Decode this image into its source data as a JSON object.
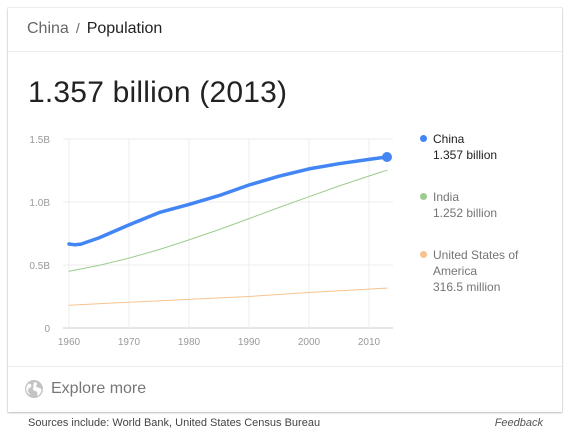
{
  "breadcrumb": {
    "entity": "China",
    "separator": "/",
    "topic": "Population"
  },
  "headline": "1.357 billion (2013)",
  "chart_data": {
    "type": "line",
    "y_ticks": [
      {
        "label": "1.5B",
        "value": 1.5
      },
      {
        "label": "1.0B",
        "value": 1.0
      },
      {
        "label": "0.5B",
        "value": 0.5
      },
      {
        "label": "0",
        "value": 0
      }
    ],
    "x_ticks": [
      "1960",
      "1970",
      "1980",
      "1990",
      "2000",
      "2010"
    ],
    "xlim": [
      1959,
      2014
    ],
    "ylim": [
      0,
      1.5
    ],
    "grid": true,
    "legend_position": "right",
    "series": [
      {
        "name": "China",
        "value_label": "1.357 billion",
        "color": "#4285f4",
        "x": [
          1960,
          1961,
          1962,
          1965,
          1970,
          1975,
          1980,
          1985,
          1990,
          1995,
          2000,
          2005,
          2010,
          2013
        ],
        "y": [
          0.667,
          0.66,
          0.666,
          0.715,
          0.818,
          0.916,
          0.981,
          1.051,
          1.135,
          1.205,
          1.263,
          1.304,
          1.338,
          1.357
        ]
      },
      {
        "name": "India",
        "value_label": "1.252 billion",
        "color": "#9ccc8f",
        "x": [
          1960,
          1965,
          1970,
          1975,
          1980,
          1985,
          1990,
          1995,
          2000,
          2005,
          2010,
          2013
        ],
        "y": [
          0.45,
          0.497,
          0.555,
          0.622,
          0.699,
          0.781,
          0.868,
          0.956,
          1.042,
          1.127,
          1.206,
          1.252
        ]
      },
      {
        "name": "United States of America",
        "value_label": "316.5 million",
        "color": "#f7c28e",
        "x": [
          1960,
          1970,
          1980,
          1990,
          2000,
          2010,
          2013
        ],
        "y": [
          0.181,
          0.205,
          0.227,
          0.25,
          0.282,
          0.309,
          0.3165
        ]
      }
    ]
  },
  "footer": {
    "explore_more": "Explore more",
    "sources": "Sources include: World Bank, United States Census Bureau",
    "feedback": "Feedback"
  },
  "icons": {
    "explore": "globe-icon"
  }
}
